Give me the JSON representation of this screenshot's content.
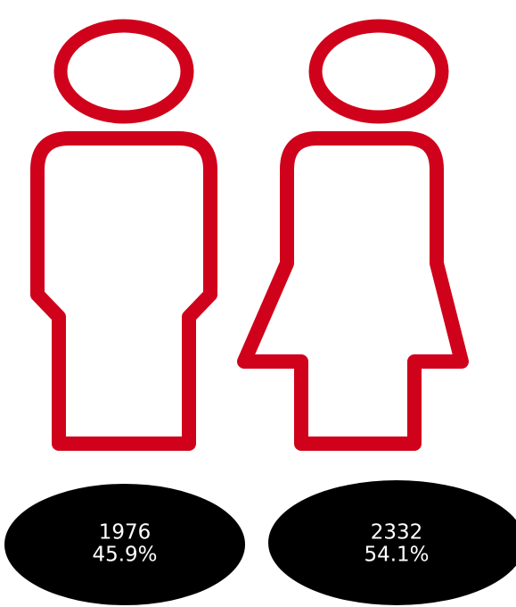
{
  "figures": [
    {
      "count": 1976,
      "share": "45.9%"
    },
    {
      "count": 2332,
      "share": "54.1%"
    }
  ]
}
